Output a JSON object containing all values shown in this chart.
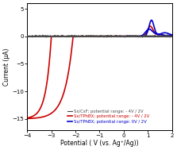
{
  "title": "",
  "xlabel": "Potential ( V (vs. Ag⁺/Ag))",
  "ylabel": "Current (μA)",
  "xlim": [
    -4,
    2
  ],
  "ylim": [
    -17,
    6
  ],
  "yticks": [
    -15,
    -10,
    -5,
    0,
    5
  ],
  "xticks": [
    -4,
    -3,
    -2,
    -1,
    0,
    1,
    2
  ],
  "legend": [
    {
      "label": "Sx/CsF; potential range: - 4V / 2V",
      "color": "#4a4a4a",
      "lw": 0.8
    },
    {
      "label": "Sx/TPhBX; potential range: - 4V / 2V",
      "color": "#cc0000",
      "lw": 1.2
    },
    {
      "label": "Sx/TPhBX; potential range: 0V / 2V",
      "color": "#0000cc",
      "lw": 1.2
    }
  ],
  "background_color": "#ffffff"
}
